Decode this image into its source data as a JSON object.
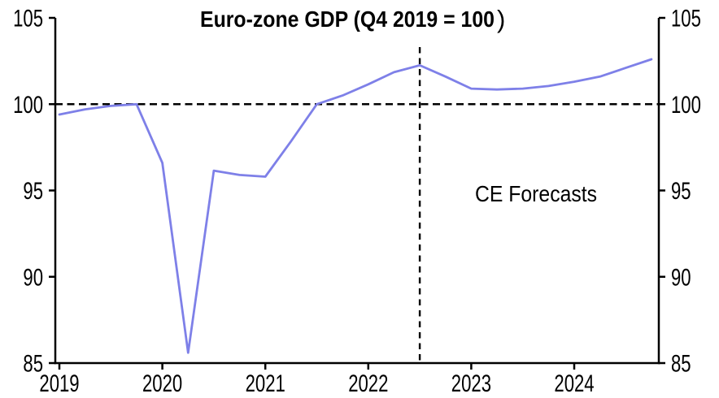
{
  "chart_data": {
    "type": "line",
    "title_bold": "Euro-zone GDP (Q4 2019 = 100",
    "title_paren": ")",
    "title_full": "Euro-zone GDP (Q4 2019 = 100)",
    "annotation": "CE Forecasts",
    "background": "#ffffff",
    "axis_color": "#000000",
    "grid": false,
    "legend": "none",
    "ylim": [
      85,
      105
    ],
    "y_ticks": [
      85,
      90,
      95,
      100,
      105
    ],
    "y_tick_labels": [
      "85",
      "90",
      "95",
      "100",
      "105"
    ],
    "x_tick_labels": [
      "2019",
      "2020",
      "2021",
      "2022",
      "2023",
      "2024"
    ],
    "reference_line": {
      "value": 100,
      "style": "dashed",
      "color": "#000000"
    },
    "forecast_divider": {
      "x_quarter": "2022 Q3",
      "quarter_index": 14,
      "style": "dashed",
      "color": "#000000"
    },
    "series": [
      {
        "name": "Euro-zone GDP (Q4 2019 = 100)",
        "color": "#7e80e8",
        "x_quarters": [
          "2019 Q1",
          "2019 Q2",
          "2019 Q3",
          "2019 Q4",
          "2020 Q1",
          "2020 Q2",
          "2020 Q3",
          "2020 Q4",
          "2021 Q1",
          "2021 Q2",
          "2021 Q3",
          "2021 Q4",
          "2022 Q1",
          "2022 Q2",
          "2022 Q3",
          "2022 Q4",
          "2023 Q1",
          "2023 Q2",
          "2023 Q3",
          "2023 Q4",
          "2024 Q1",
          "2024 Q2",
          "2024 Q3",
          "2024 Q4"
        ],
        "values": [
          99.4,
          99.7,
          99.9,
          100.0,
          96.6,
          85.6,
          96.15,
          95.9,
          95.8,
          97.85,
          100.0,
          100.5,
          101.15,
          101.85,
          102.25,
          101.6,
          100.9,
          100.85,
          100.9,
          101.05,
          101.3,
          101.6,
          102.1,
          102.6
        ]
      }
    ]
  }
}
